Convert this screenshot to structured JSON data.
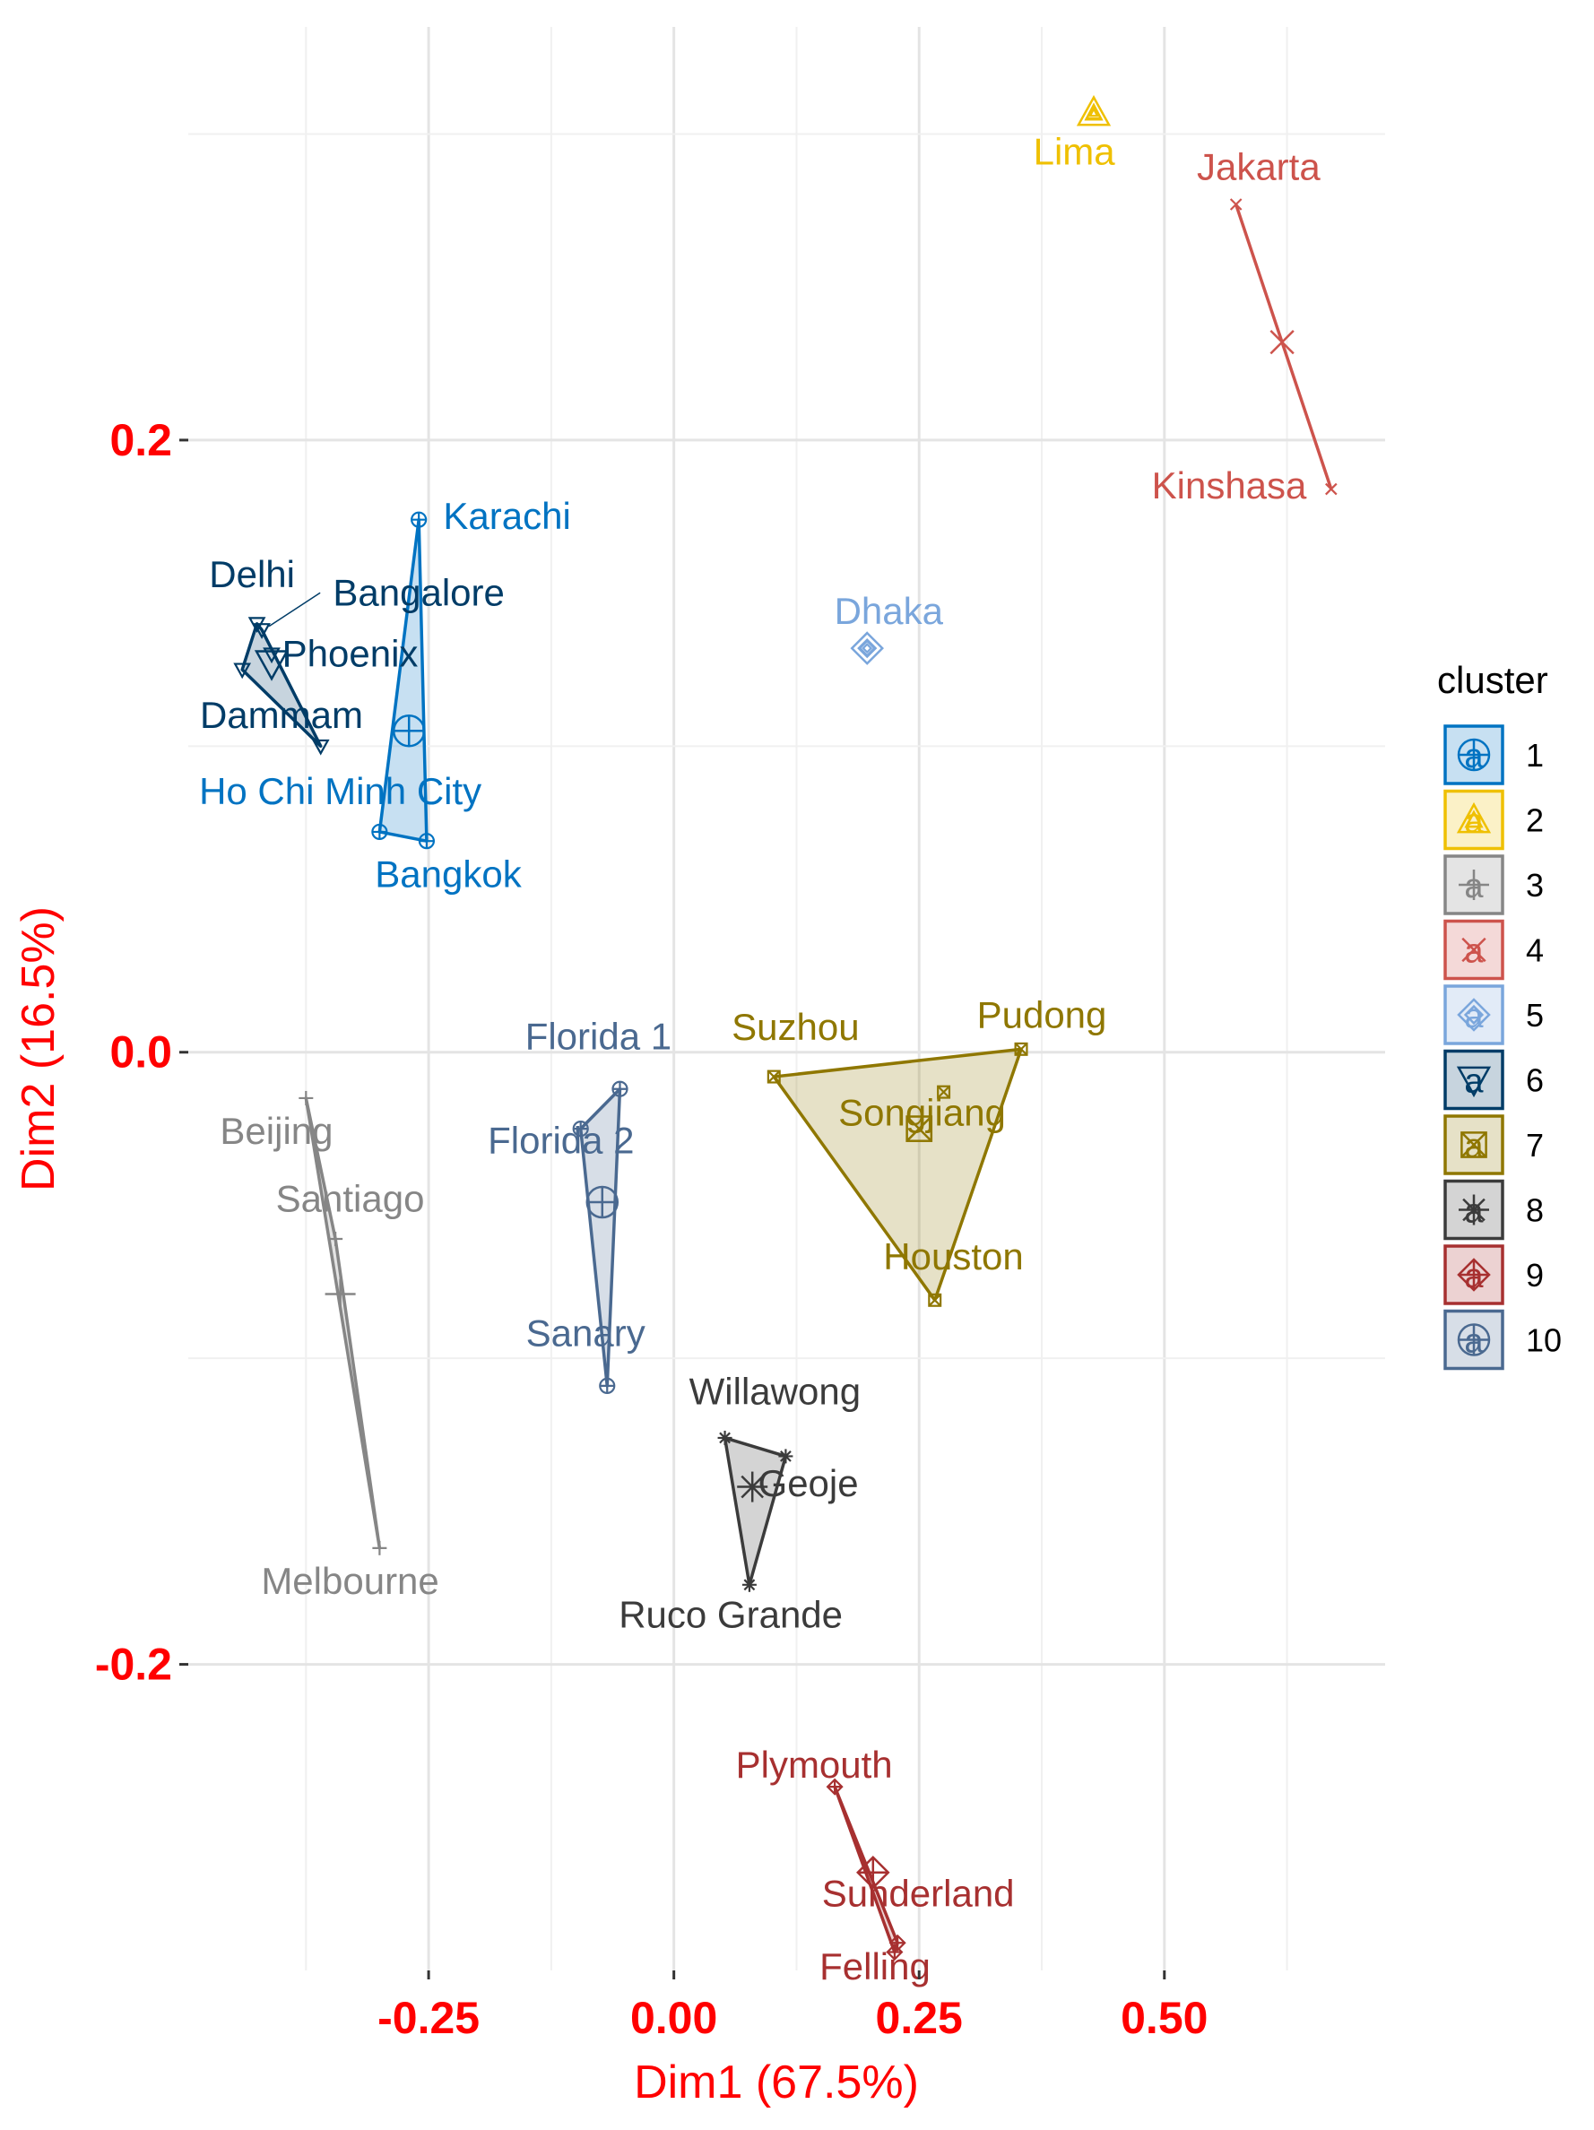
{
  "chart_data": {
    "type": "scatter",
    "title": "",
    "xlabel": "Dim1 (67.5%)",
    "ylabel": "Dim2 (16.5%)",
    "xlim": [
      -0.495,
      0.725
    ],
    "ylim": [
      -0.3,
      0.335
    ],
    "x_ticks": [
      -0.25,
      0.0,
      0.25,
      0.5
    ],
    "x_tick_labels": [
      "-0.25",
      "0.00",
      "0.25",
      "0.50"
    ],
    "y_ticks": [
      -0.2,
      0.0,
      0.2
    ],
    "y_tick_labels": [
      "-0.2",
      "0.0",
      "0.2"
    ],
    "grid": true,
    "legend_title": "cluster",
    "legend_position": "right",
    "legend_key_letter": "a",
    "clusters": [
      {
        "id": "1",
        "color": "#0073C2",
        "shape": "circle-plus",
        "centroid": [
          -0.27,
          0.105
        ],
        "points": [
          {
            "name": "Karachi",
            "x": -0.26,
            "y": 0.174,
            "lx": -0.17,
            "ly": 0.171,
            "anchor": "middle"
          },
          {
            "name": "Ho Chi Minh City",
            "x": -0.3,
            "y": 0.072,
            "lx": -0.34,
            "ly": 0.081,
            "anchor": "middle"
          },
          {
            "name": "Bangkok",
            "x": -0.252,
            "y": 0.069,
            "lx": -0.23,
            "ly": 0.054,
            "anchor": "middle"
          }
        ]
      },
      {
        "id": "2",
        "color": "#EFC000",
        "shape": "triangle",
        "centroid": [
          0.428,
          0.307
        ],
        "points": [
          {
            "name": "Lima",
            "x": 0.428,
            "y": 0.307,
            "lx": 0.408,
            "ly": 0.29,
            "anchor": "middle"
          }
        ]
      },
      {
        "id": "3",
        "color": "#868686",
        "shape": "plus",
        "centroid": [
          -0.34,
          -0.079
        ],
        "points": [
          {
            "name": "Beijing",
            "x": -0.375,
            "y": -0.015,
            "lx": -0.405,
            "ly": -0.03,
            "anchor": "middle"
          },
          {
            "name": "Santiago",
            "x": -0.345,
            "y": -0.061,
            "lx": -0.33,
            "ly": -0.052,
            "anchor": "middle"
          },
          {
            "name": "Melbourne",
            "x": -0.3,
            "y": -0.162,
            "lx": -0.33,
            "ly": -0.177,
            "anchor": "middle"
          }
        ]
      },
      {
        "id": "4",
        "color": "#CD534C",
        "shape": "x",
        "centroid": [
          0.62,
          0.232
        ],
        "points": [
          {
            "name": "Jakarta",
            "x": 0.573,
            "y": 0.277,
            "lx": 0.596,
            "ly": 0.285,
            "anchor": "middle"
          },
          {
            "name": "Kinshasa",
            "x": 0.67,
            "y": 0.184,
            "lx": 0.566,
            "ly": 0.181,
            "anchor": "middle"
          }
        ]
      },
      {
        "id": "5",
        "color": "#7AA6DC",
        "shape": "diamond",
        "centroid": [
          0.197,
          0.132
        ],
        "points": [
          {
            "name": "Dhaka",
            "x": 0.197,
            "y": 0.132,
            "lx": 0.219,
            "ly": 0.14,
            "anchor": "middle"
          }
        ]
      },
      {
        "id": "6",
        "color": "#003C67",
        "shape": "triangle-down",
        "centroid": [
          -0.41,
          0.127
        ],
        "points": [
          {
            "name": "Delhi",
            "x": -0.425,
            "y": 0.14,
            "lx": -0.43,
            "ly": 0.152,
            "anchor": "middle"
          },
          {
            "name": "Bangalore",
            "x": -0.42,
            "y": 0.138,
            "lx": -0.26,
            "ly": 0.146,
            "anchor": "middle"
          },
          {
            "name": "Phoenix",
            "x": -0.41,
            "y": 0.13,
            "lx": -0.33,
            "ly": 0.126,
            "anchor": "middle"
          },
          {
            "name": "Dammam",
            "x": -0.44,
            "y": 0.125,
            "lx": -0.4,
            "ly": 0.106,
            "anchor": "middle"
          },
          {
            "name": "",
            "x": -0.36,
            "y": 0.1,
            "lx": 0,
            "ly": 0,
            "anchor": "middle"
          }
        ]
      },
      {
        "id": "7",
        "color": "#8F7700",
        "shape": "square-x",
        "centroid": [
          0.25,
          -0.025
        ],
        "points": [
          {
            "name": "Suzhou",
            "x": 0.102,
            "y": -0.008,
            "lx": 0.124,
            "ly": 0.004,
            "anchor": "middle"
          },
          {
            "name": "Pudong",
            "x": 0.354,
            "y": 0.001,
            "lx": 0.375,
            "ly": 0.008,
            "anchor": "middle"
          },
          {
            "name": "Songjiang",
            "x": 0.275,
            "y": -0.013,
            "lx": 0.253,
            "ly": -0.024,
            "anchor": "middle"
          },
          {
            "name": "Houston",
            "x": 0.266,
            "y": -0.081,
            "lx": 0.285,
            "ly": -0.071,
            "anchor": "middle"
          }
        ]
      },
      {
        "id": "8",
        "color": "#3B3B3B",
        "shape": "asterisk",
        "centroid": [
          0.08,
          -0.142
        ],
        "points": [
          {
            "name": "Willawong",
            "x": 0.052,
            "y": -0.126,
            "lx": 0.103,
            "ly": -0.115,
            "anchor": "middle"
          },
          {
            "name": "Geoje",
            "x": 0.114,
            "y": -0.132,
            "lx": 0.137,
            "ly": -0.145,
            "anchor": "middle"
          },
          {
            "name": "Ruco Grande",
            "x": 0.077,
            "y": -0.174,
            "lx": 0.058,
            "ly": -0.188,
            "anchor": "middle"
          }
        ]
      },
      {
        "id": "9",
        "color": "#A73030",
        "shape": "diamond-plus",
        "centroid": [
          0.203,
          -0.268
        ],
        "points": [
          {
            "name": "Plymouth",
            "x": 0.164,
            "y": -0.24,
            "lx": 0.143,
            "ly": -0.237,
            "anchor": "middle"
          },
          {
            "name": "Sunderland",
            "x": 0.228,
            "y": -0.291,
            "lx": 0.249,
            "ly": -0.279,
            "anchor": "middle"
          },
          {
            "name": "Felling",
            "x": 0.225,
            "y": -0.294,
            "lx": 0.205,
            "ly": -0.303,
            "anchor": "middle"
          }
        ]
      },
      {
        "id": "10",
        "color": "#4A6990",
        "shape": "circle-plus",
        "centroid": [
          -0.073,
          -0.049
        ],
        "points": [
          {
            "name": "Florida 1",
            "x": -0.055,
            "y": -0.012,
            "lx": -0.077,
            "ly": 0.001,
            "anchor": "middle"
          },
          {
            "name": "Florida 2",
            "x": -0.095,
            "y": -0.025,
            "lx": -0.115,
            "ly": -0.033,
            "anchor": "middle"
          },
          {
            "name": "Sanary",
            "x": -0.068,
            "y": -0.109,
            "lx": -0.09,
            "ly": -0.096,
            "anchor": "middle"
          }
        ]
      }
    ]
  }
}
